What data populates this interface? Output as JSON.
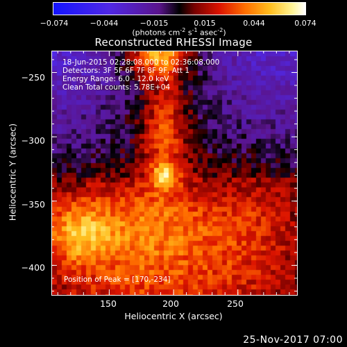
{
  "colorbar": {
    "ticks": [
      "−0.074",
      "−0.044",
      "−0.015",
      "0.015",
      "0.044",
      "0.074"
    ],
    "units_parts": [
      "(photons cm",
      "-2",
      " s",
      "-1",
      " asec",
      "-2",
      ")"
    ]
  },
  "title": "Reconstructed RHESSI Image",
  "overlay": {
    "line1": "18-Jun-2015 02:28:08.000 to 02:36:08.000",
    "line2": "Detectors: 3F 5F 6F 7F 8F 9F, Att 1",
    "line3": "Energy Range: 6.0 - 12.0 keV",
    "line4": "Clean    Total counts: 5.78E+04"
  },
  "peak_text": "Position of Peak = [170,-234]",
  "timestamp": "25-Nov-2017 07:00",
  "chart_data": {
    "type": "heatmap",
    "title": "Reconstructed RHESSI Image",
    "xlabel": "Heliocentric X (arcsec)",
    "ylabel": "Heliocentric Y (arcsec)",
    "x_ticks": [
      "150",
      "200",
      "250"
    ],
    "y_ticks": [
      "−250",
      "−300",
      "−350",
      "−400"
    ],
    "x_tick_values": [
      150,
      200,
      250
    ],
    "y_tick_values": [
      -250,
      -300,
      -350,
      -400
    ],
    "xlim": [
      105,
      296
    ],
    "ylim": [
      -423,
      -233
    ],
    "colorscale": "red-temperature (negative: blue/violet, positive: red-orange-yellow-white)",
    "value_range": [
      -0.074,
      0.074
    ],
    "peak_position": [
      170,
      -234
    ],
    "grid": false
  },
  "colors": {
    "background": "#000000",
    "foreground": "#ffffff"
  }
}
